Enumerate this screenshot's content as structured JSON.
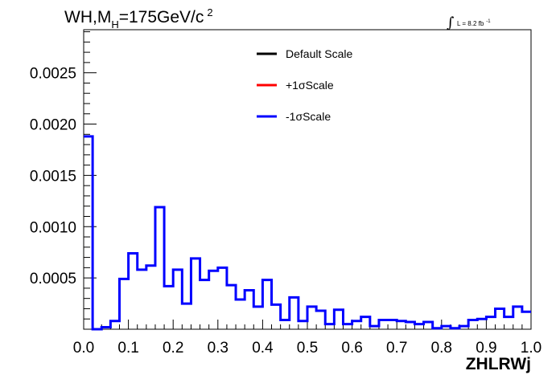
{
  "chart_data": {
    "type": "line",
    "title": {
      "main": "WH,M",
      "subscript": "H",
      "value": "=175GeV/c",
      "superscript": "2"
    },
    "luminosity": {
      "symbol": "∫",
      "text": "L = 8.2 fb",
      "superscript": "-1"
    },
    "xlabel": "ZHLRWj",
    "ylabel": "",
    "xlim": [
      0.0,
      1.0
    ],
    "ylim": [
      0.0,
      0.00292
    ],
    "x_ticks": [
      "0.0",
      "0.1",
      "0.2",
      "0.3",
      "0.4",
      "0.5",
      "0.6",
      "0.7",
      "0.8",
      "0.9",
      "1.0"
    ],
    "y_ticks": [
      "0.0005",
      "0.0010",
      "0.0015",
      "0.0020",
      "0.0025"
    ],
    "grid": false,
    "legend_position": "top-center",
    "legend": [
      {
        "name": "Default Scale",
        "color": "#000000"
      },
      {
        "name": "+1σScale",
        "color": "#ff0000"
      },
      {
        "name": "-1σScale",
        "color": "#0000ff"
      }
    ],
    "bin_edges": [
      0.0,
      0.02,
      0.04,
      0.06,
      0.08,
      0.1,
      0.12,
      0.14,
      0.16,
      0.18,
      0.2,
      0.22,
      0.24,
      0.26,
      0.28,
      0.3,
      0.32,
      0.34,
      0.36,
      0.38,
      0.4,
      0.42,
      0.44,
      0.46,
      0.48,
      0.5,
      0.52,
      0.54,
      0.56,
      0.58,
      0.6,
      0.62,
      0.64,
      0.66,
      0.68,
      0.7,
      0.72,
      0.74,
      0.76,
      0.78,
      0.8,
      0.82,
      0.84,
      0.86,
      0.88,
      0.9,
      0.92,
      0.94,
      0.96,
      0.98,
      1.0
    ],
    "series": [
      {
        "name": "-1σScale",
        "color": "#0000ff",
        "values": [
          0.00188,
          0.0,
          2e-05,
          8e-05,
          0.00049,
          0.00074,
          0.00058,
          0.00062,
          0.00119,
          0.00042,
          0.00058,
          0.00025,
          0.00069,
          0.00048,
          0.00057,
          0.0006,
          0.00043,
          0.00029,
          0.00038,
          0.00022,
          0.00048,
          0.00024,
          9e-05,
          0.00031,
          8e-05,
          0.00022,
          0.00018,
          5e-05,
          0.00019,
          5e-05,
          8e-05,
          0.00012,
          3e-05,
          9e-05,
          9e-05,
          8e-05,
          7e-05,
          5e-05,
          7e-05,
          1e-05,
          3e-05,
          1e-05,
          3e-05,
          9e-05,
          0.0001,
          0.00012,
          0.0002,
          0.00012,
          0.00022,
          0.00017
        ]
      }
    ]
  }
}
